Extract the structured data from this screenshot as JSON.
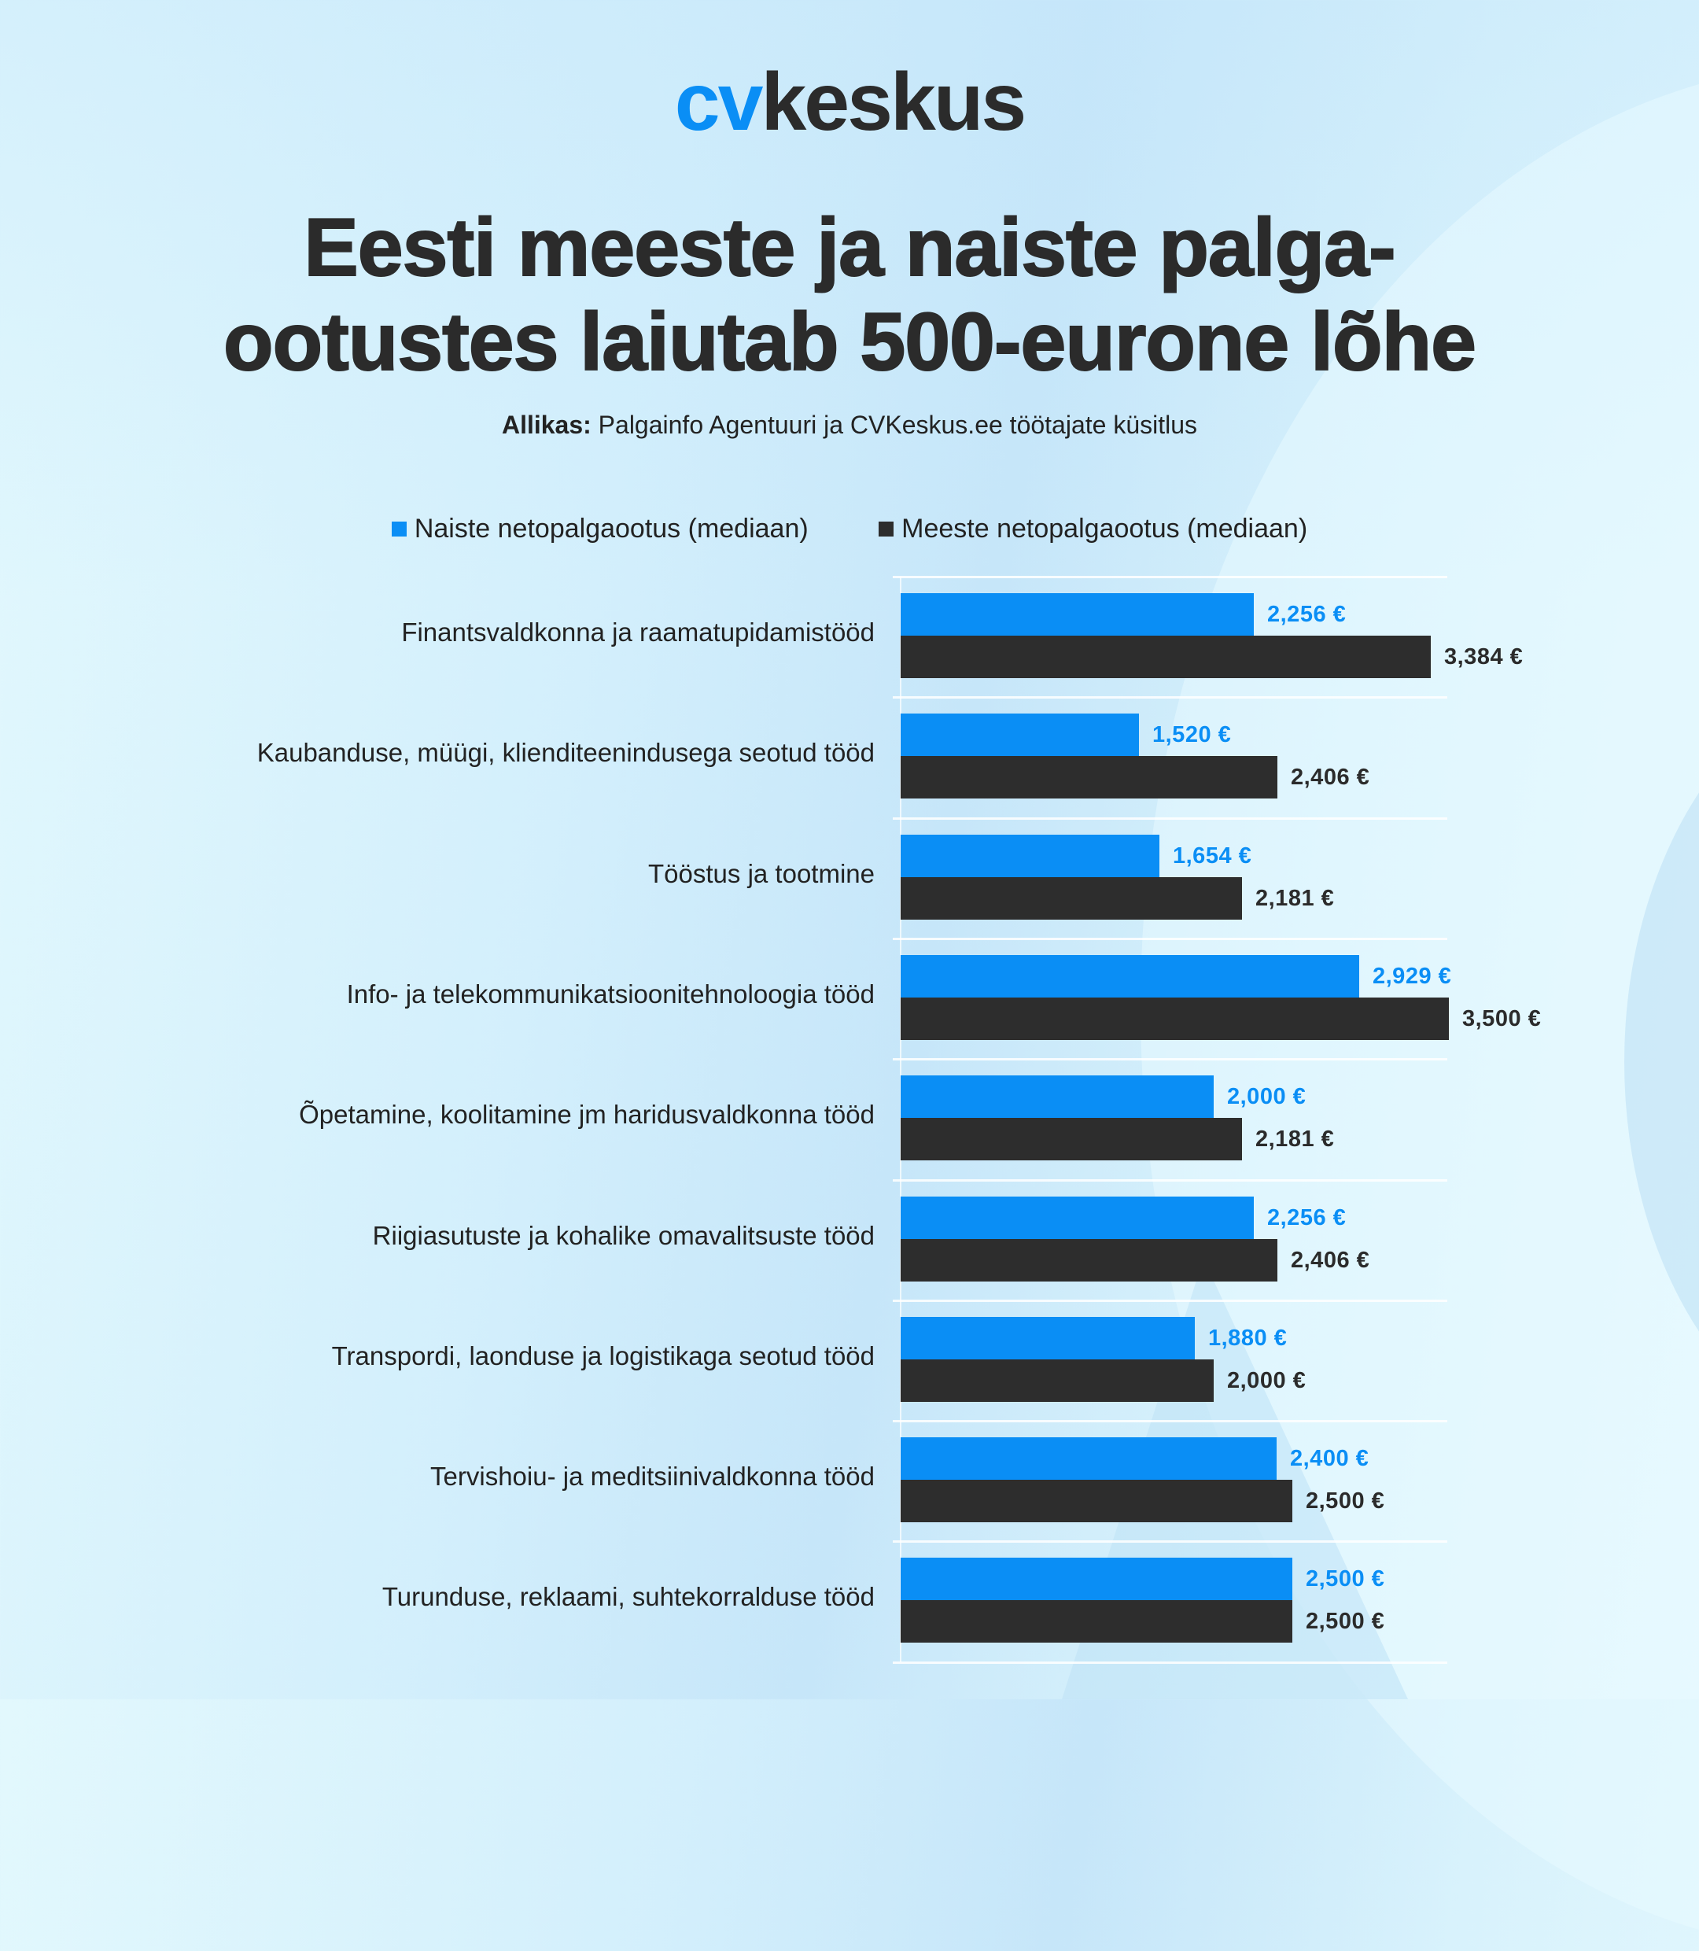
{
  "logo": {
    "part1": "cv",
    "part2": "keskus"
  },
  "title": {
    "line1": "Eesti meeste ja naiste palga-",
    "line2": "ootustes laiutab 500-eurone lõhe"
  },
  "source": {
    "label": "Allikas:",
    "text": " Palgainfo Agentuuri ja CVKeskus.ee töötajate küsitlus"
  },
  "legend": [
    {
      "label": "Naiste netopalgaootus (mediaan)",
      "color": "#0a8ef5"
    },
    {
      "label": "Meeste netopalgaootus (mediaan)",
      "color": "#2d2d2d"
    }
  ],
  "colors": {
    "women": "#0a8ef5",
    "men": "#2d2d2d",
    "text": "#2b2b2b"
  },
  "chart_data": {
    "type": "bar",
    "orientation": "horizontal",
    "title": "Eesti meeste ja naiste palgaootustes laiutab 500-eurone lõhe",
    "subtitle": "Allikas: Palgainfo Agentuuri ja CVKeskus.ee töötajate küsitlus",
    "xlabel": "",
    "ylabel": "",
    "xlim": [
      0,
      3500
    ],
    "grid": false,
    "legend_position": "top",
    "unit": "€",
    "categories": [
      "Finantsvaldkonna ja raamatupidamistööd",
      "Kaubanduse, müügi, klienditeenindusega seotud tööd",
      "Tööstus ja tootmine",
      "Info- ja telekommunikatsioonitehnoloogia tööd",
      "Õpetamine, koolitamine jm haridusvaldkonna tööd",
      "Riigiasutuste ja kohalike omavalitsuste tööd",
      "Transpordi, laonduse ja logistikaga seotud tööd",
      "Tervishoiu- ja meditsiinivaldkonna tööd",
      "Turunduse, reklaami, suhtekorralduse tööd"
    ],
    "series": [
      {
        "name": "Naiste netopalgaootus (mediaan)",
        "color": "#0a8ef5",
        "values": [
          2256,
          1520,
          1654,
          2929,
          2000,
          2256,
          1880,
          2400,
          2500
        ],
        "labels": [
          "2,256 €",
          "1,520 €",
          "1,654 €",
          "2,929 €",
          "2,000 €",
          "2,256 €",
          "1,880 €",
          "2,400 €",
          "2,500 €"
        ]
      },
      {
        "name": "Meeste netopalgaootus (mediaan)",
        "color": "#2d2d2d",
        "values": [
          3384,
          2406,
          2181,
          3500,
          2181,
          2406,
          2000,
          2500,
          2500
        ],
        "labels": [
          "3,384 €",
          "2,406 €",
          "2,181 €",
          "3,500 €",
          "2,181 €",
          "2,406 €",
          "2,000 €",
          "2,500 €",
          "2,500 €"
        ]
      }
    ]
  }
}
